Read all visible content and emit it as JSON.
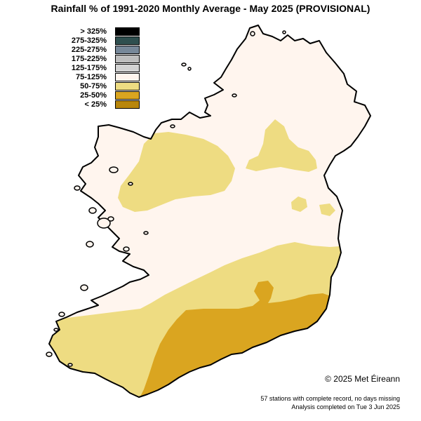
{
  "title": "Rainfall % of  1991-2020  Monthly Average - May 2025  (PROVISIONAL)",
  "legend": [
    {
      "label": "> 325%",
      "color": "#000000"
    },
    {
      "label": "275-325%",
      "color": "#2f4f4f"
    },
    {
      "label": "225-275%",
      "color": "#778899"
    },
    {
      "label": "175-225%",
      "color": "#bebebe"
    },
    {
      "label": "125-175%",
      "color": "#d3d3d3"
    },
    {
      "label": "75-125%",
      "color": "#fff5ee"
    },
    {
      "label": "50-75%",
      "color": "#eedc82"
    },
    {
      "label": "25-50%",
      "color": "#daa520"
    },
    {
      "label": "< 25%",
      "color": "#b8860b"
    }
  ],
  "colors": {
    "normal": "#fff5ee",
    "dry": "#eedc82",
    "very_dry": "#daa520",
    "coast": "#000000"
  },
  "footer": {
    "copyright": "© 2025 Met Éireann",
    "stations": "57 stations with complete record, no days missing",
    "analysis": "Analysis completed on Tue 3 Jun 2025"
  }
}
